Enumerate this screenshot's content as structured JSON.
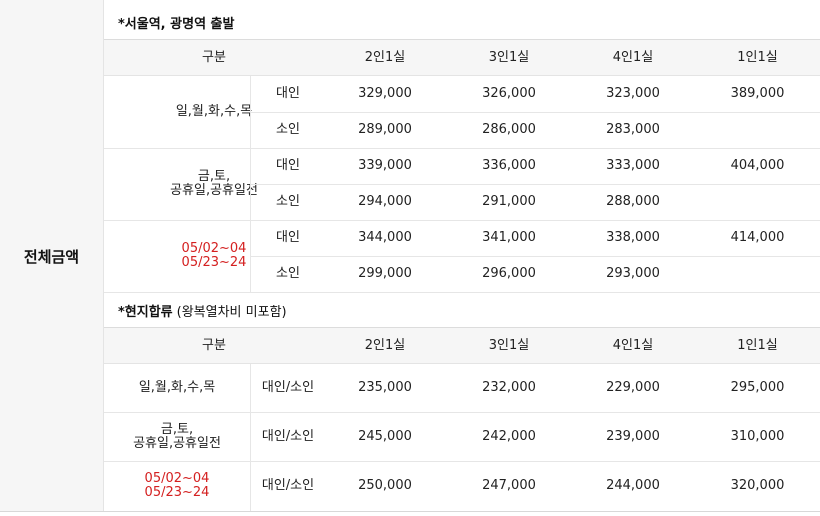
{
  "side_label": "전체금액",
  "section1": {
    "title": "*서울역, 광명역 출발",
    "headers": [
      "구분",
      "2인1실",
      "3인1실",
      "4인1실",
      "1인1실"
    ],
    "groups": [
      {
        "label": [
          "일,월,화,수,목"
        ],
        "red": false,
        "rows": [
          {
            "type": "대인",
            "v2": "329,000",
            "v3": "326,000",
            "v4": "323,000",
            "v1": "389,000"
          },
          {
            "type": "소인",
            "v2": "289,000",
            "v3": "286,000",
            "v4": "283,000",
            "v1": ""
          }
        ]
      },
      {
        "label": [
          "금,토,",
          "공휴일,공휴일전"
        ],
        "red": false,
        "rows": [
          {
            "type": "대인",
            "v2": "339,000",
            "v3": "336,000",
            "v4": "333,000",
            "v1": "404,000"
          },
          {
            "type": "소인",
            "v2": "294,000",
            "v3": "291,000",
            "v4": "288,000",
            "v1": ""
          }
        ]
      },
      {
        "label": [
          "05/02~04",
          "05/23~24"
        ],
        "red": true,
        "rows": [
          {
            "type": "대인",
            "v2": "344,000",
            "v3": "341,000",
            "v4": "338,000",
            "v1": "414,000"
          },
          {
            "type": "소인",
            "v2": "299,000",
            "v3": "296,000",
            "v4": "293,000",
            "v1": ""
          }
        ]
      }
    ]
  },
  "section2": {
    "title": "*현지합류",
    "subtitle": "(왕복열차비 미포함)",
    "headers": [
      "구분",
      "2인1실",
      "3인1실",
      "4인1실",
      "1인1실"
    ],
    "rows": [
      {
        "label": [
          "일,월,화,수,목"
        ],
        "red": false,
        "type": "대인/소인",
        "v2": "235,000",
        "v3": "232,000",
        "v4": "229,000",
        "v1": "295,000"
      },
      {
        "label": [
          "금,토,",
          "공휴일,공휴일전"
        ],
        "red": false,
        "type": "대인/소인",
        "v2": "245,000",
        "v3": "242,000",
        "v4": "239,000",
        "v1": "310,000"
      },
      {
        "label": [
          "05/02~04",
          "05/23~24"
        ],
        "red": true,
        "type": "대인/소인",
        "v2": "250,000",
        "v3": "247,000",
        "v4": "244,000",
        "v1": "320,000"
      }
    ]
  }
}
